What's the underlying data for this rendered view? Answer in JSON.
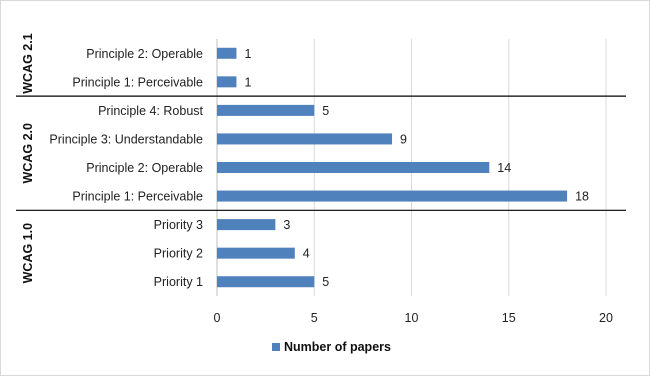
{
  "chart_data": {
    "type": "bar",
    "orientation": "horizontal",
    "title": "",
    "xlabel": "",
    "ylabel": "",
    "xlim": [
      0,
      20
    ],
    "xticks": [
      0,
      5,
      10,
      15,
      20
    ],
    "grid": "vertical",
    "legend": {
      "position": "bottom",
      "entries": [
        "Number of papers"
      ]
    },
    "bar_color": "#4f81bd",
    "groups": [
      {
        "name": "WCAG 2.1",
        "categories": [
          "Principle  2: Operable",
          "Principle  1: Perceivable"
        ],
        "values": [
          1,
          1
        ]
      },
      {
        "name": "WCAG 2.0",
        "categories": [
          "Principle  4: Robust",
          "Principle  3: Understandable",
          "Principle  2: Operable",
          "Principle  1: Perceivable"
        ],
        "values": [
          5,
          9,
          14,
          18
        ]
      },
      {
        "name": "WCAG 1.0",
        "categories": [
          "Priority  3",
          "Priority  2",
          "Priority  1"
        ],
        "values": [
          3,
          4,
          5
        ]
      }
    ],
    "series": [
      {
        "name": "Number of papers",
        "values": [
          1,
          1,
          5,
          9,
          14,
          18,
          3,
          4,
          5
        ]
      }
    ]
  }
}
